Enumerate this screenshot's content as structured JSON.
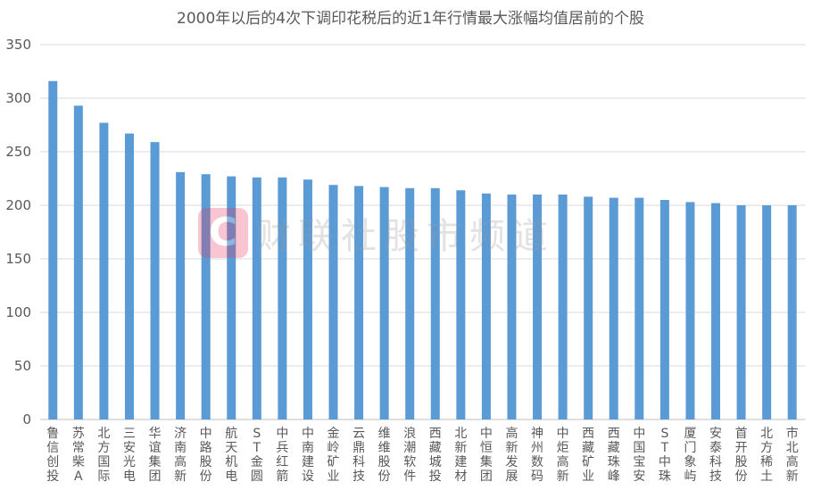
{
  "chart_data": {
    "type": "bar",
    "title": "2000年以后的4次下调印花税后的近1年行情最大涨幅均值居前的个股",
    "xlabel": "",
    "ylabel": "",
    "ylim": [
      0,
      350
    ],
    "yticks": [
      0,
      50,
      100,
      150,
      200,
      250,
      300,
      350
    ],
    "grid": true,
    "categories": [
      "鲁信创投",
      "苏常柴A",
      "北方国际",
      "三安光电",
      "华谊集团",
      "济南高新",
      "中路股份",
      "航天机电",
      "ST金圆",
      "中兵红箭",
      "中南建设",
      "金岭矿业",
      "云鼎科技",
      "维维股份",
      "浪潮软件",
      "西藏城投",
      "北新建材",
      "中恒集团",
      "高新发展",
      "神州数码",
      "中炬高新",
      "西藏矿业",
      "西藏珠峰",
      "中国宝安",
      "ST中珠",
      "厦门象屿",
      "安泰科技",
      "首开股份",
      "北方稀土",
      "市北高新"
    ],
    "values": [
      316,
      293,
      277,
      267,
      259,
      231,
      229,
      227,
      226,
      226,
      224,
      219,
      218,
      217,
      216,
      216,
      214,
      211,
      210,
      210,
      210,
      208,
      207,
      207,
      205,
      203,
      202,
      200,
      200,
      200
    ]
  },
  "watermark": {
    "logo_letter": "C",
    "text": "财联社股市频道"
  }
}
